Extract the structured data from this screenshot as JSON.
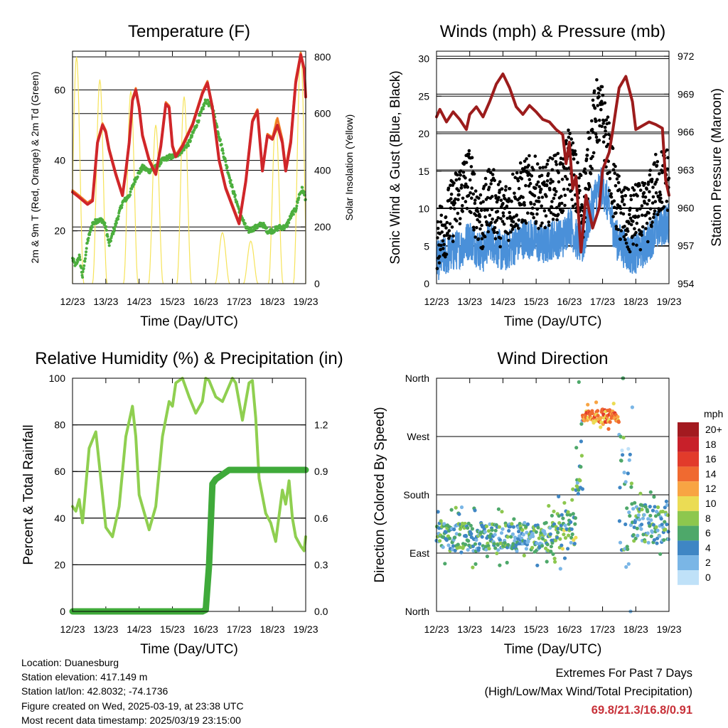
{
  "chart_data": [
    {
      "id": "temperature",
      "type": "line",
      "title": "Temperature (F)",
      "xlabel": "Time (Day/UTC)",
      "ylabel": "2m & 9m T (Red, Orange) & 2m Td (Green)",
      "y2label": "Solar Insolation (Yellow)",
      "x_ticks": [
        "12/23",
        "13/23",
        "14/23",
        "15/23",
        "16/23",
        "17/23",
        "18/23",
        "19/23"
      ],
      "ylim": [
        5,
        71
      ],
      "yticks": [
        20,
        40,
        60
      ],
      "y2lim": [
        0,
        820
      ],
      "y2ticks": [
        0,
        200,
        400,
        600,
        800
      ],
      "grid": true,
      "series": [
        {
          "label": "2m T",
          "axis": "y",
          "color": "#d0262a",
          "width": 4,
          "x": [
            0,
            0.2,
            0.45,
            0.6,
            0.75,
            0.9,
            1.0,
            1.1,
            1.3,
            1.5,
            1.6,
            1.7,
            1.8,
            1.9,
            2.0,
            2.1,
            2.3,
            2.5,
            2.65,
            2.8,
            2.9,
            3.0,
            3.1,
            3.3,
            3.6,
            3.9,
            4.05,
            4.2,
            4.4,
            4.6,
            4.8,
            5.0,
            5.2,
            5.4,
            5.55,
            5.7,
            5.85,
            6.0,
            6.15,
            6.3,
            6.4,
            6.55,
            6.7,
            6.85,
            6.95,
            7.0
          ],
          "y": [
            31,
            29.5,
            27.5,
            28.5,
            45,
            50,
            48,
            43,
            36,
            30,
            37,
            45,
            57,
            60,
            55,
            47,
            40,
            36,
            44,
            56,
            55,
            44,
            41,
            44,
            50,
            59,
            62,
            55,
            40,
            32,
            27,
            22,
            34,
            51,
            54,
            37,
            47,
            46,
            50,
            45,
            37,
            45,
            62,
            70,
            66,
            58
          ]
        },
        {
          "label": "9m T",
          "axis": "y",
          "color": "#f07a26",
          "width": 3,
          "x": [
            0,
            0.2,
            0.45,
            0.6,
            0.75,
            0.9,
            1.0,
            1.1,
            1.3,
            1.5,
            1.6,
            1.7,
            1.8,
            1.9,
            2.0,
            2.1,
            2.3,
            2.5,
            2.65,
            2.8,
            2.9,
            3.0,
            3.1,
            3.3,
            3.6,
            3.9,
            4.05,
            4.2,
            4.4,
            4.6,
            4.8,
            5.0,
            5.2,
            5.4,
            5.55,
            5.7,
            5.85,
            6.0,
            6.15,
            6.3,
            6.4,
            6.55,
            6.7,
            6.85,
            6.95,
            7.0
          ],
          "y": [
            31.5,
            30,
            28,
            29,
            45.5,
            50.5,
            48.5,
            43.5,
            36.5,
            30.5,
            37.5,
            45.5,
            57.5,
            60.5,
            55.5,
            47.5,
            40.5,
            36.5,
            44.5,
            56.5,
            55.5,
            44.5,
            41.5,
            44.5,
            50.5,
            59.5,
            62.5,
            55.5,
            40.5,
            32.5,
            27.5,
            22.5,
            34.5,
            51.5,
            54.5,
            37.5,
            47.5,
            46.5,
            52,
            46,
            38,
            46,
            63,
            70.5,
            66.5,
            58.5
          ]
        },
        {
          "label": "2m Td",
          "axis": "y",
          "color": "#4caf3e",
          "width": 3,
          "x": [
            0,
            0.1,
            0.2,
            0.3,
            0.45,
            0.6,
            0.75,
            0.9,
            1.0,
            1.1,
            1.3,
            1.5,
            1.7,
            1.9,
            2.1,
            2.3,
            2.5,
            2.7,
            2.9,
            3.0,
            3.2,
            3.5,
            3.8,
            4.0,
            4.2,
            4.5,
            4.8,
            5.0,
            5.2,
            5.3,
            5.5,
            5.7,
            5.85,
            6.0,
            6.2,
            6.4,
            6.5,
            6.6,
            6.7,
            6.8,
            6.9,
            7.0
          ],
          "y": [
            12,
            10,
            13,
            7,
            17,
            22,
            23,
            23,
            21,
            16,
            22,
            28,
            30,
            35,
            38,
            37,
            38,
            40,
            41,
            41,
            42,
            45,
            52,
            57,
            55,
            43,
            32,
            26,
            21,
            20,
            21,
            22,
            20,
            20,
            21,
            21,
            23,
            25,
            26,
            30,
            32,
            29
          ]
        },
        {
          "label": "Solar Insolation",
          "axis": "y2",
          "color": "#f6e35a",
          "width": 1,
          "daily_peaks": [
            800,
            720,
            680,
            560,
            660,
            180,
            150,
            580,
            820
          ]
        }
      ]
    },
    {
      "id": "winds",
      "type": "scatter",
      "title": "Winds (mph) & Pressure (mb)",
      "xlabel": "Time (Day/UTC)",
      "ylabel": "Sonic Wind & Gust (Blue, Black)",
      "y2label": "Station Pressure (Maroon)",
      "x_ticks": [
        "12/23",
        "13/23",
        "14/23",
        "15/23",
        "16/23",
        "17/23",
        "18/23",
        "19/23"
      ],
      "ylim": [
        0,
        31
      ],
      "yticks": [
        0,
        5,
        10,
        15,
        20,
        25,
        30
      ],
      "y2lim": [
        954,
        972.4
      ],
      "y2ticks": [
        954,
        957,
        960,
        963,
        966,
        969,
        972
      ],
      "grid": true,
      "series": [
        {
          "label": "Gust",
          "axis": "y",
          "color": "#000000",
          "marker": "dot",
          "profile_x": [
            0,
            0.4,
            0.8,
            1.0,
            1.2,
            1.4,
            1.6,
            1.8,
            2.0,
            2.3,
            2.6,
            2.9,
            3.2,
            3.5,
            3.8,
            4.0,
            4.2,
            4.4,
            4.6,
            4.8,
            5.0,
            5.2,
            5.4,
            5.6,
            5.8,
            6.0,
            6.3,
            6.6,
            6.9,
            7.0
          ],
          "profile_y": [
            6,
            9,
            13,
            14,
            10,
            8,
            12,
            10,
            9,
            11,
            12,
            13,
            11,
            13,
            13,
            17,
            13,
            10,
            17,
            23,
            22,
            17,
            11,
            9,
            8,
            9,
            9,
            13,
            14,
            14
          ]
        },
        {
          "label": "Sonic Wind",
          "axis": "y",
          "color": "#4a90d9",
          "marker": "line",
          "profile_x": [
            0,
            0.4,
            0.8,
            1.0,
            1.2,
            1.4,
            1.6,
            1.8,
            2.0,
            2.3,
            2.6,
            2.9,
            3.2,
            3.5,
            3.8,
            4.0,
            4.2,
            4.4,
            4.6,
            4.8,
            5.0,
            5.2,
            5.4,
            5.6,
            5.8,
            6.0,
            6.3,
            6.6,
            6.9,
            7.0
          ],
          "profile_y": [
            3,
            4,
            5,
            6,
            5,
            4,
            6,
            5,
            4,
            5,
            6,
            6,
            5,
            6,
            6,
            8,
            6,
            5,
            9,
            12,
            13,
            10,
            6,
            5,
            4,
            4,
            5,
            7,
            8,
            8
          ]
        },
        {
          "label": "Station Pressure",
          "axis": "y2",
          "color": "#9c1c1c",
          "width": 4,
          "x": [
            0,
            0.1,
            0.3,
            0.5,
            0.7,
            0.9,
            1.0,
            1.2,
            1.4,
            1.6,
            1.8,
            2.0,
            2.2,
            2.4,
            2.6,
            2.8,
            3.0,
            3.2,
            3.4,
            3.6,
            3.8,
            3.9,
            4.0,
            4.1,
            4.2,
            4.35,
            4.5,
            4.7,
            4.9,
            5.0,
            5.2,
            5.3,
            5.4,
            5.5,
            5.7,
            5.9,
            6.0,
            6.2,
            6.4,
            6.6,
            6.8,
            6.9,
            7.0
          ],
          "y": [
            967.2,
            967.8,
            966.8,
            967.6,
            967.0,
            966.2,
            967.4,
            968.0,
            967.2,
            968.4,
            969.8,
            970.6,
            969.5,
            968.0,
            967.4,
            968.1,
            967.6,
            967.0,
            966.8,
            966.2,
            965.8,
            963.5,
            965.2,
            961.5,
            962.5,
            956.5,
            961.0,
            958.4,
            960.0,
            963.0,
            964.4,
            966.0,
            967.8,
            969.5,
            970.4,
            968.4,
            966.2,
            966.5,
            966.8,
            966.6,
            966.3,
            962.2,
            961.0
          ]
        }
      ]
    },
    {
      "id": "humidity",
      "type": "line",
      "title": "Relative Humidity (%) & Precipitation (in)",
      "xlabel": "Time (Day/UTC)",
      "ylabel": "Percent & Total Rainfall",
      "x_ticks": [
        "12/23",
        "13/23",
        "14/23",
        "15/23",
        "16/23",
        "17/23",
        "18/23",
        "19/23"
      ],
      "ylim": [
        0,
        100
      ],
      "yticks": [
        0,
        20,
        40,
        60,
        80,
        100
      ],
      "y2lim": [
        0,
        1.5
      ],
      "y2ticks": [
        "0.0",
        "0.3",
        "0.6",
        "0.9",
        "1.2"
      ],
      "grid": true,
      "series": [
        {
          "label": "Relative Humidity",
          "axis": "y",
          "color": "#8fcf50",
          "width": 4,
          "x": [
            0,
            0.1,
            0.2,
            0.3,
            0.5,
            0.7,
            0.9,
            1.0,
            1.2,
            1.4,
            1.6,
            1.8,
            1.9,
            2.0,
            2.1,
            2.3,
            2.5,
            2.7,
            2.9,
            3.0,
            3.1,
            3.3,
            3.5,
            3.7,
            3.9,
            4.0,
            4.1,
            4.3,
            4.5,
            4.8,
            4.9,
            5.1,
            5.3,
            5.4,
            5.5,
            5.6,
            5.8,
            5.95,
            6.1,
            6.3,
            6.4,
            6.5,
            6.6,
            6.7,
            6.85,
            6.95,
            7.0
          ],
          "y": [
            45,
            43,
            48,
            38,
            70,
            77,
            50,
            36,
            32,
            45,
            75,
            88,
            75,
            50,
            45,
            35,
            45,
            75,
            90,
            88,
            98,
            100,
            92,
            85,
            90,
            100,
            99,
            92,
            90,
            100,
            98,
            82,
            98,
            99,
            83,
            57,
            42,
            38,
            30,
            52,
            46,
            56,
            40,
            32,
            28,
            26,
            32
          ]
        },
        {
          "label": "Total Precipitation",
          "axis": "y2",
          "color": "#3faa3a",
          "width": 9,
          "x": [
            0,
            3.9,
            4.0,
            4.1,
            4.2,
            4.3,
            4.5,
            4.7,
            7.0
          ],
          "y": [
            0,
            0,
            0.01,
            0.3,
            0.82,
            0.85,
            0.88,
            0.91,
            0.91
          ]
        }
      ]
    },
    {
      "id": "wind_direction",
      "type": "scatter",
      "title": "Wind Direction",
      "xlabel": "Time (Day/UTC)",
      "ylabel": "Direction (Colored By Speed)",
      "x_ticks": [
        "12/23",
        "13/23",
        "14/23",
        "15/23",
        "16/23",
        "17/23",
        "18/23",
        "19/23"
      ],
      "ylim": [
        0,
        360
      ],
      "y_tick_labels": [
        "North",
        "East",
        "South",
        "West",
        "North"
      ],
      "grid": true,
      "legend": {
        "title": "mph",
        "placement": "right",
        "labels": [
          "20+",
          "18",
          "16",
          "14",
          "12",
          "10",
          "8",
          "6",
          "4",
          "2",
          "0"
        ],
        "colors": [
          "#a31a20",
          "#c8202a",
          "#e23b2b",
          "#f06a30",
          "#f8a443",
          "#ebdc54",
          "#8dc74e",
          "#4ea86a",
          "#3f86c4",
          "#7ab6e6",
          "#bfe1f8"
        ]
      },
      "segments": [
        {
          "x0": 0,
          "x1": 3.5,
          "dir_center": 115,
          "spread": 22,
          "speed": 5
        },
        {
          "x0": 3.5,
          "x1": 4.2,
          "dir_center": 125,
          "spread": 30,
          "speed": 6
        },
        {
          "x0": 4.2,
          "x1": 4.4,
          "dir_center": 240,
          "spread": 60,
          "speed": 6
        },
        {
          "x0": 4.4,
          "x1": 5.5,
          "dir_center": 302,
          "spread": 10,
          "speed": 13
        },
        {
          "x0": 5.5,
          "x1": 5.9,
          "dir_center": 200,
          "spread": 110,
          "speed": 4
        },
        {
          "x0": 5.9,
          "x1": 7.0,
          "dir_center": 135,
          "spread": 30,
          "speed": 5
        }
      ]
    }
  ],
  "info": {
    "location": "Location: Duanesburg",
    "elevation": "Station elevation: 417.149 m",
    "latlon": "Station lat/lon: 42.8032; -74.1736",
    "created": "Figure created on Wed, 2025-03-19, at 23:38 UTC",
    "recent": "Most recent data timestamp: 2025/03/19 23:15:00"
  },
  "extremes": {
    "line1": "Extremes For Past 7 Days",
    "line2": "(High/Low/Max Wind/Total Precipitation)",
    "values": "69.8/21.3/16.8/0.91"
  }
}
